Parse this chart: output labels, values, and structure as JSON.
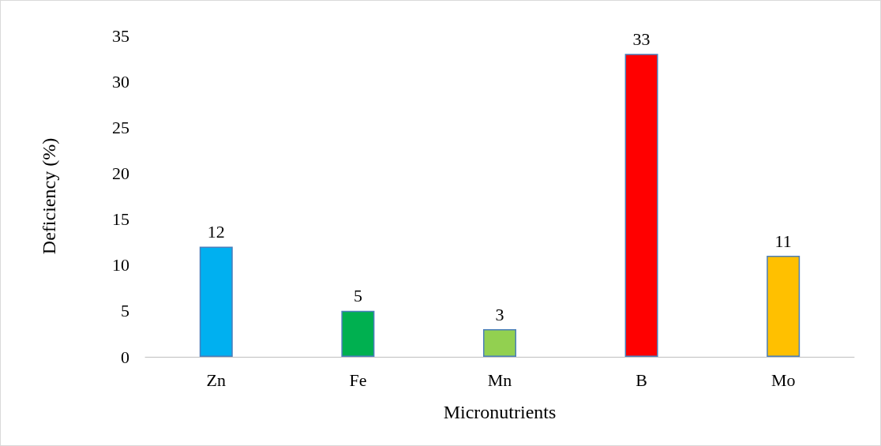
{
  "chart_data": {
    "type": "bar",
    "xlabel": "Micronutrients",
    "ylabel": "Deficiency (%)",
    "categories": [
      "Zn",
      "Fe",
      "Mn",
      "B",
      "Mo"
    ],
    "values": [
      12,
      5,
      3,
      33,
      11
    ],
    "colors": [
      "#00b0f0",
      "#00b050",
      "#92d050",
      "#ff0000",
      "#ffc000"
    ],
    "ylim": [
      0,
      35
    ],
    "yticks": [
      0,
      5,
      10,
      15,
      20,
      25,
      30,
      35
    ],
    "data_labels": true
  }
}
